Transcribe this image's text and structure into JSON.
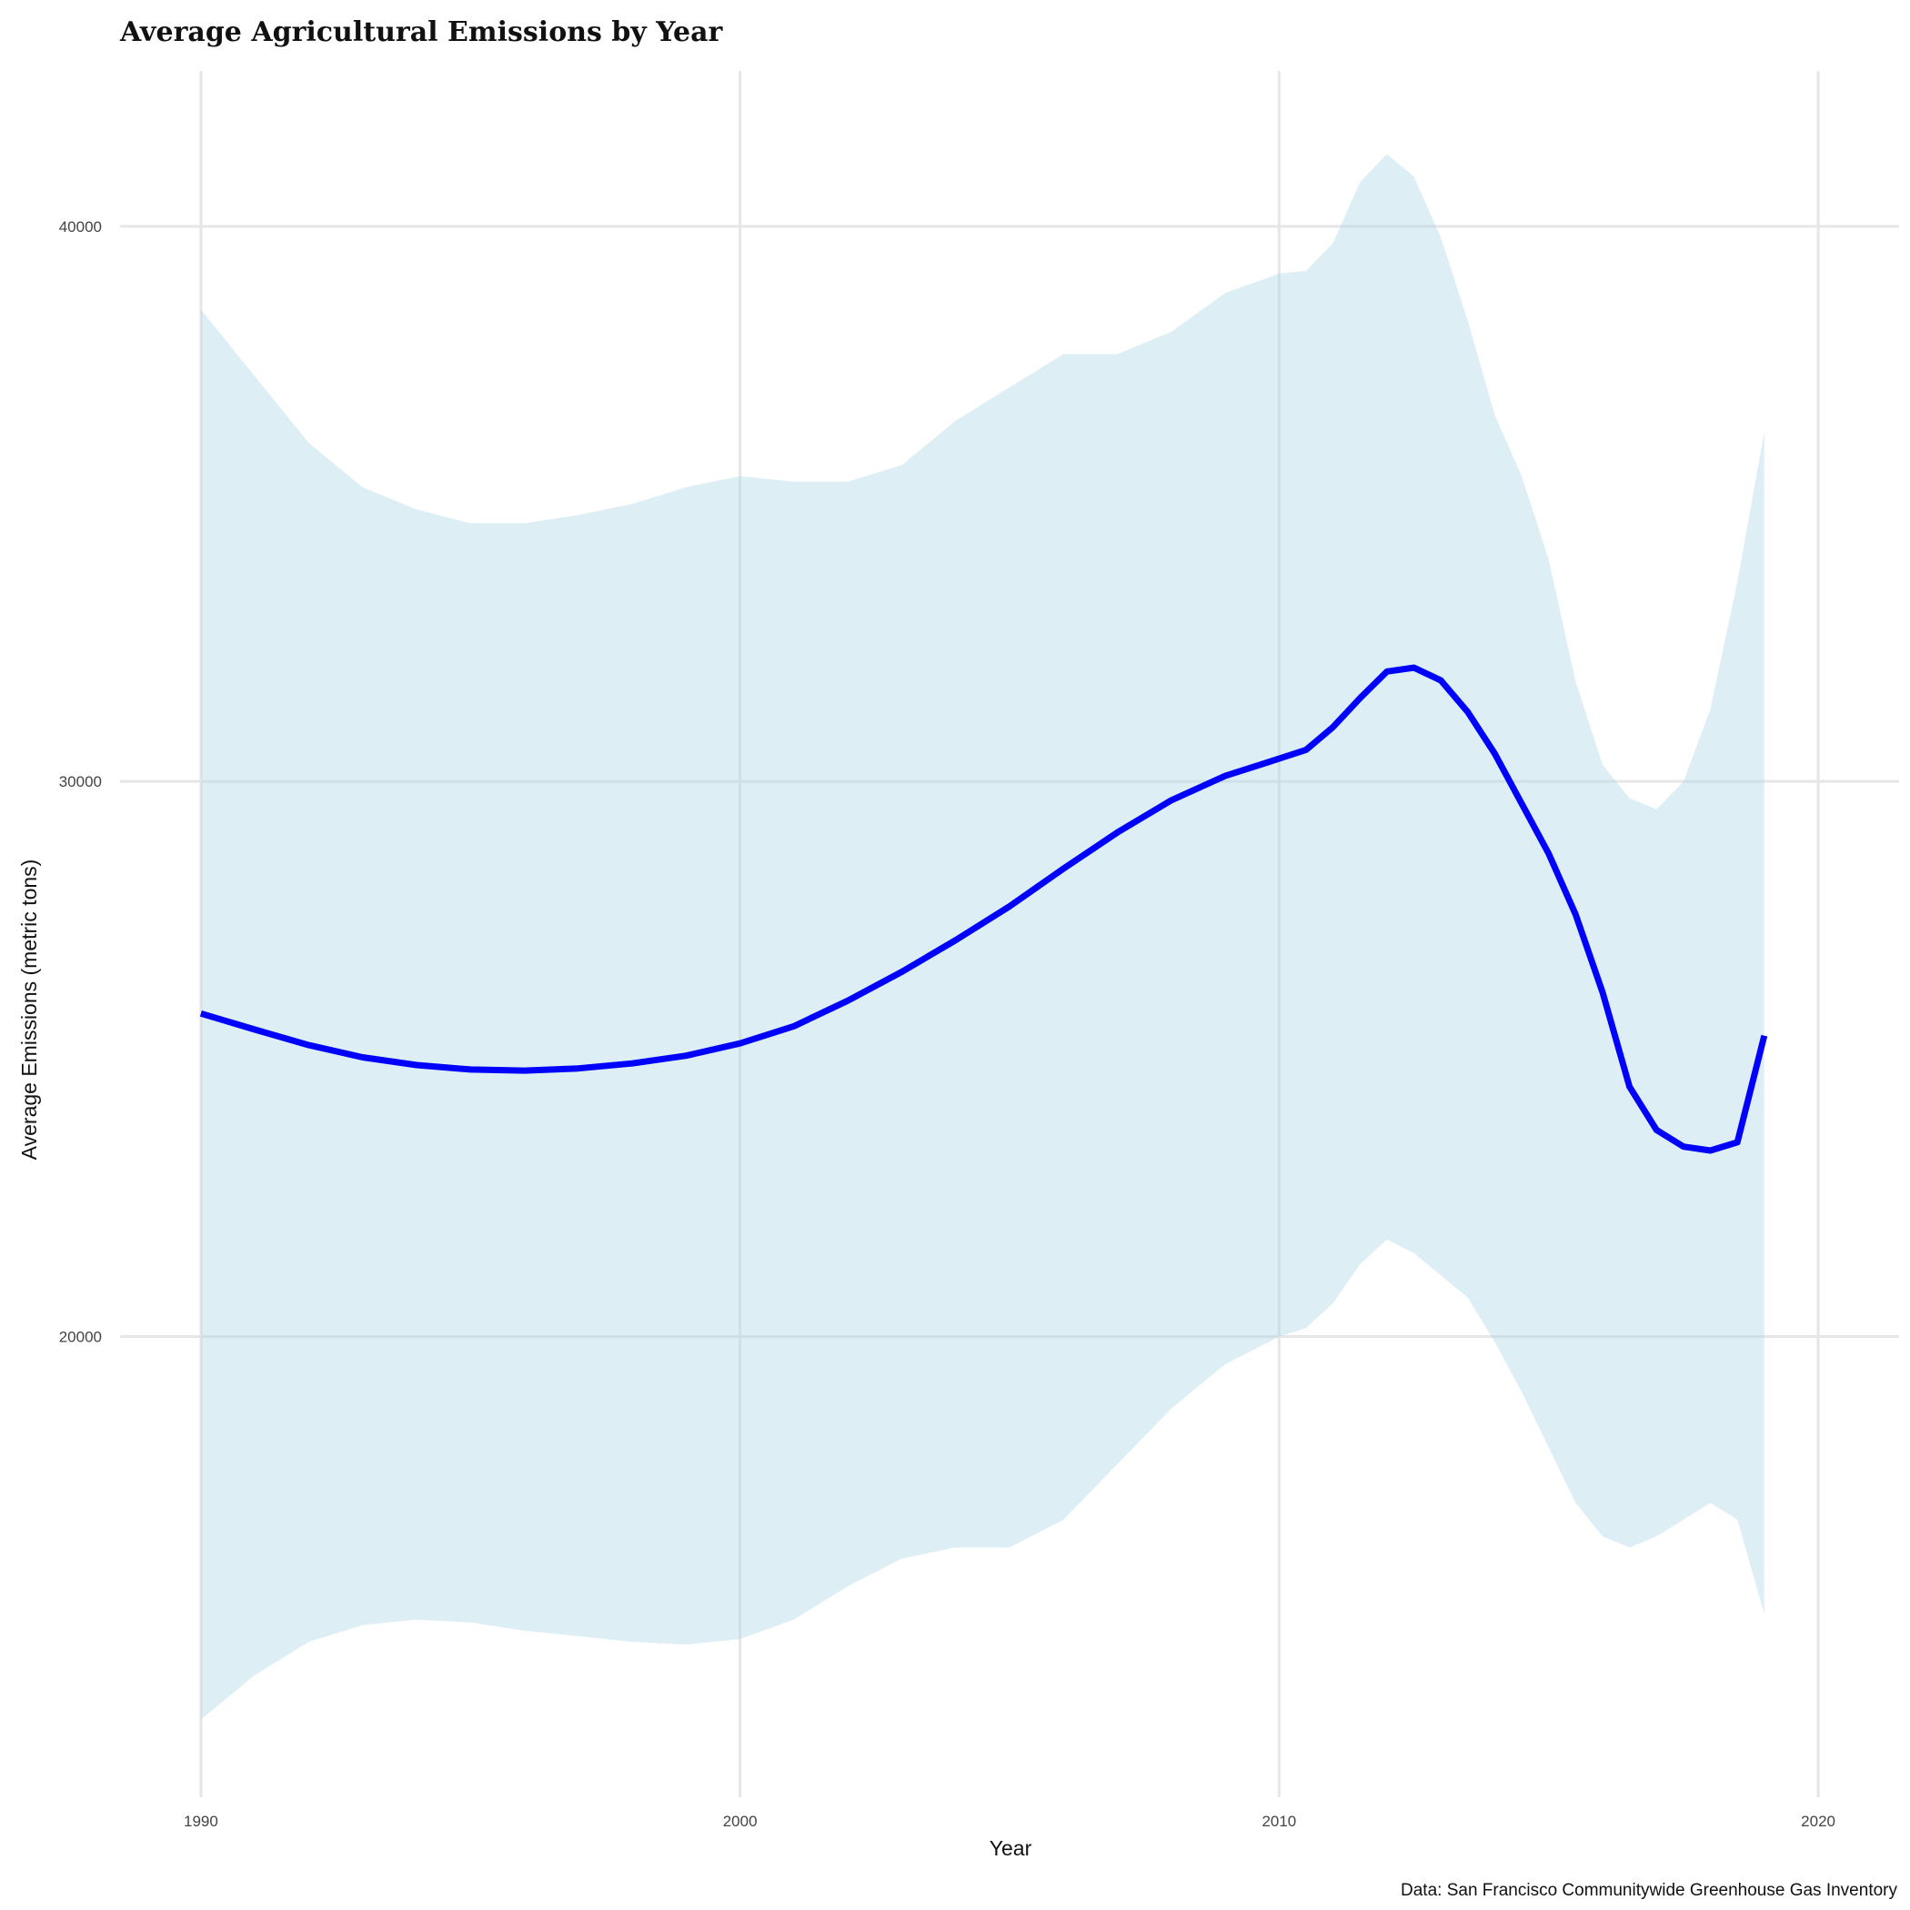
{
  "chart_data": {
    "type": "area",
    "title": "Average Agricultural Emissions by Year",
    "xlabel": "Year",
    "ylabel": "Average Emissions (metric tons)",
    "caption": "Data: San Francisco Communitywide Greenhouse Gas Inventory",
    "xlim": [
      1988.5,
      2021.5
    ],
    "ylim": [
      11700,
      42800
    ],
    "x_ticks": [
      1990,
      2000,
      2010,
      2020
    ],
    "y_ticks": [
      20000,
      30000,
      40000
    ],
    "grid": true,
    "legend": "none",
    "colors": {
      "line": "#0000ff",
      "band": "#add8e6",
      "grid": "#e6e6e6"
    },
    "series": [
      {
        "type": "line",
        "x": [
          1990,
          1991,
          1992,
          1993,
          1994,
          1995,
          1996,
          1997,
          1998,
          1999,
          2000,
          2001,
          2002,
          2003,
          2004,
          2005,
          2006,
          2007,
          2008,
          2009,
          2010,
          2010.5,
          2011,
          2011.5,
          2012,
          2012.5,
          2013,
          2013.5,
          2014,
          2014.5,
          2015,
          2015.5,
          2016,
          2016.5,
          2017,
          2017.5,
          2018,
          2018.5,
          2019
        ],
        "values": [
          25820,
          25530,
          25250,
          25030,
          24890,
          24810,
          24790,
          24830,
          24920,
          25060,
          25280,
          25590,
          26050,
          26570,
          27140,
          27750,
          28430,
          29080,
          29660,
          30100,
          30410,
          30570,
          30980,
          31500,
          31980,
          32050,
          31820,
          31250,
          30500,
          29600,
          28700,
          27600,
          26200,
          24500,
          23720,
          23420,
          23350,
          23500,
          25420
        ]
      },
      {
        "type": "ribbon",
        "x": [
          1990,
          1991,
          1992,
          1993,
          1994,
          1995,
          1996,
          1997,
          1998,
          1999,
          2000,
          2001,
          2002,
          2003,
          2004,
          2005,
          2006,
          2007,
          2008,
          2009,
          2010,
          2010.5,
          2011,
          2011.5,
          2012,
          2012.5,
          2013,
          2013.5,
          2014,
          2014.5,
          2015,
          2015.5,
          2016,
          2016.5,
          2017,
          2017.5,
          2018,
          2018.5,
          2019
        ],
        "upper": [
          38500,
          37300,
          36100,
          35300,
          34900,
          34650,
          34650,
          34800,
          35000,
          35300,
          35500,
          35400,
          35400,
          35700,
          36500,
          37100,
          37700,
          37700,
          38100,
          38800,
          39150,
          39200,
          39700,
          40800,
          41300,
          40900,
          39800,
          38300,
          36600,
          35500,
          34000,
          31800,
          30300,
          29700,
          29500,
          30000,
          31300,
          33600,
          36300
        ],
        "lower": [
          13100,
          13900,
          14500,
          14800,
          14900,
          14850,
          14700,
          14600,
          14500,
          14450,
          14550,
          14900,
          15500,
          16000,
          16200,
          16200,
          16700,
          17700,
          18700,
          19500,
          20000,
          20150,
          20600,
          21300,
          21750,
          21500,
          21100,
          20700,
          19900,
          19000,
          18000,
          17000,
          16400,
          16200,
          16400,
          16700,
          17000,
          16700,
          15000
        ]
      }
    ]
  }
}
